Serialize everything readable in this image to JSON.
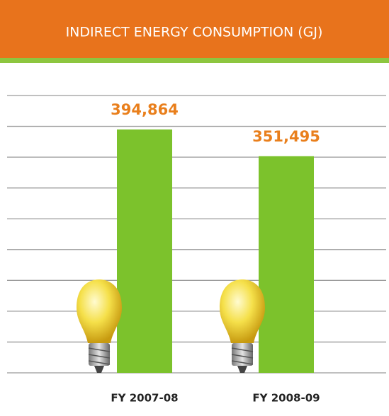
{
  "chart_data": {
    "type": "bar",
    "title": "INDIRECT ENERGY CONSUMPTION (GJ)",
    "categories": [
      "FY 2007-08",
      "FY 2008-09"
    ],
    "values": [
      394864,
      351495
    ],
    "value_labels": [
      "394,864",
      "351,495"
    ],
    "color": "#7cc22c",
    "ylim": [
      0,
      450000
    ],
    "yticks": [
      0,
      50000,
      100000,
      150000,
      200000,
      250000,
      300000,
      350000,
      400000,
      450000
    ],
    "grid": true
  }
}
